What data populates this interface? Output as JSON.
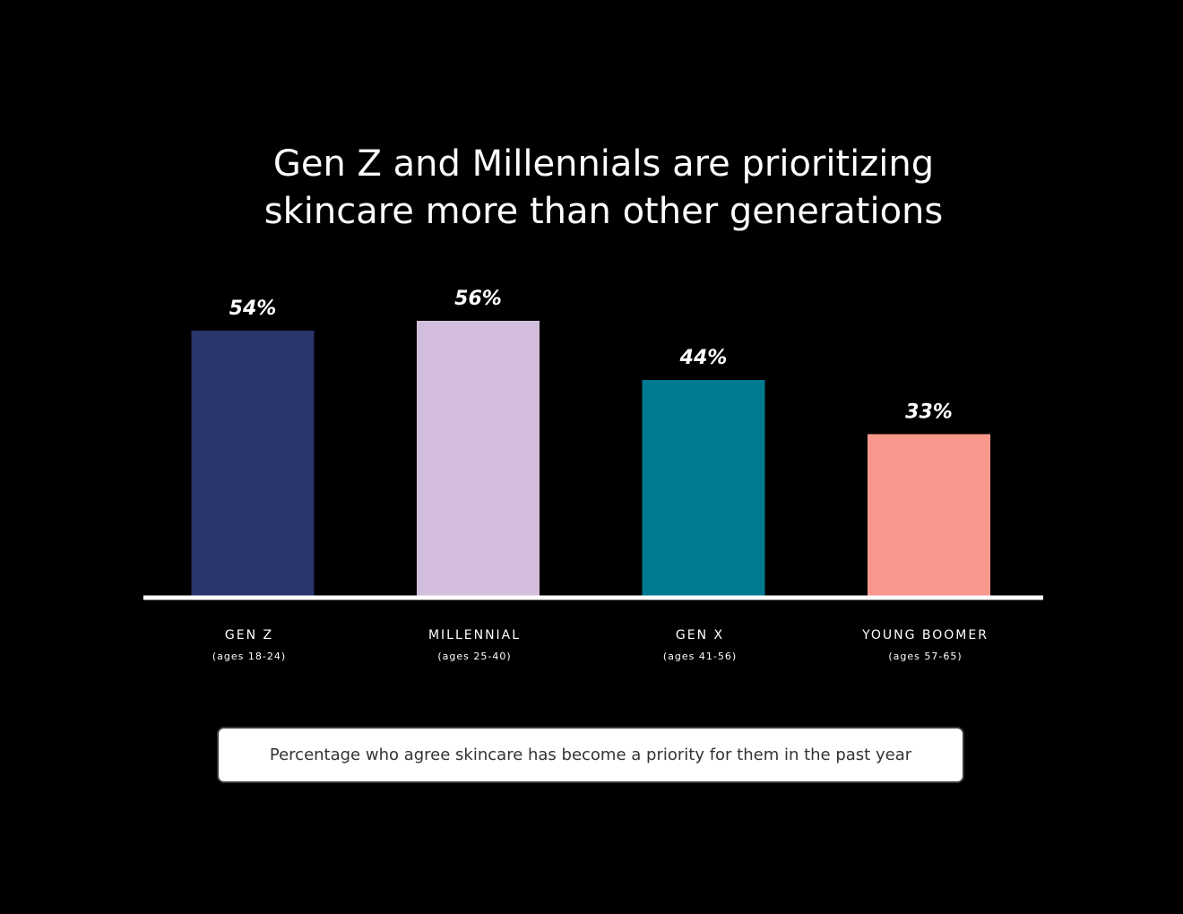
{
  "chart_data": {
    "type": "bar",
    "title_lines": [
      "Gen Z and Millennials are prioritizing",
      "skincare more than other generations"
    ],
    "categories": [
      "GEN Z",
      "MILLENNIAL",
      "GEN X",
      "YOUNG BOOMER"
    ],
    "subcategories": [
      "(ages 18-24)",
      "(ages 25-40)",
      "(ages 41-56)",
      "(ages 57-65)"
    ],
    "values": [
      54,
      56,
      44,
      33
    ],
    "value_labels": [
      "54%",
      "56%",
      "44%",
      "33%"
    ],
    "colors": [
      "#29356b",
      "#d2bedc",
      "#007a91",
      "#f8978c"
    ],
    "ylim": [
      0,
      100
    ],
    "grid": false,
    "xlabel": "",
    "ylabel": "",
    "caption": "Percentage who agree skincare has become a priority for them in the past year"
  }
}
